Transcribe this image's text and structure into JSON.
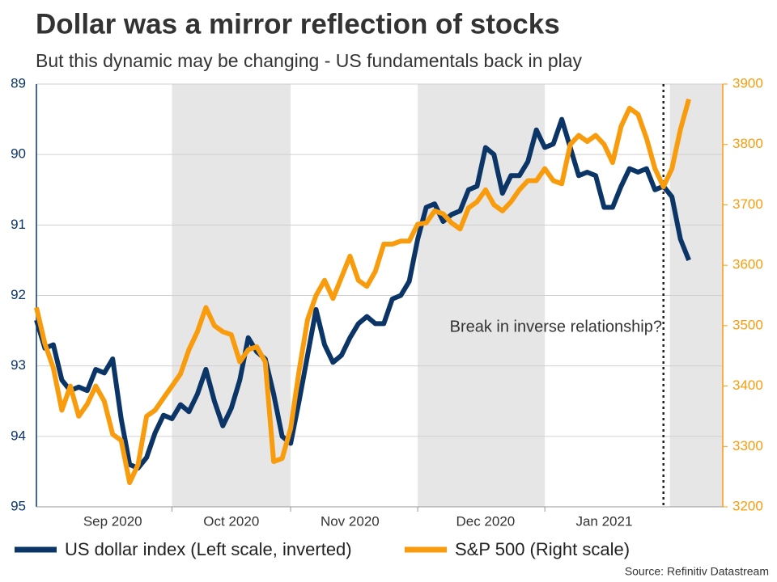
{
  "chart_data": {
    "type": "line",
    "title": "Dollar was a mirror reflection of stocks",
    "subtitle": "But this dynamic may be changing - US fundamentals back in play",
    "annotation": "Break in inverse relationship?",
    "source": "Source: Refinitiv Datastream",
    "categories": [
      null,
      null,
      null,
      null,
      null,
      null,
      null,
      null,
      null,
      "Sep 2020",
      null,
      null,
      null,
      null,
      null,
      null,
      null,
      null,
      null,
      null,
      null,
      null,
      null,
      "Oct 2020",
      null,
      null,
      null,
      null,
      null,
      null,
      null,
      null,
      null,
      null,
      null,
      null,
      null,
      "Nov 2020",
      null,
      null,
      null,
      null,
      null,
      null,
      null,
      null,
      null,
      null,
      null,
      null,
      null,
      null,
      null,
      "Dec 2020",
      null,
      null,
      null,
      null,
      null,
      null,
      null,
      null,
      null,
      null,
      null,
      null,
      null,
      "Jan 2021",
      null,
      null,
      null,
      null,
      null,
      null,
      null,
      null,
      null,
      null,
      null,
      null,
      null,
      null
    ],
    "series": [
      {
        "name": "US dollar index (Left scale, inverted)",
        "color": "#0b3566",
        "axis": "y",
        "values": [
          92.35,
          92.75,
          92.7,
          93.2,
          93.35,
          93.3,
          93.35,
          93.05,
          93.1,
          92.9,
          93.75,
          94.4,
          94.45,
          94.3,
          93.95,
          93.7,
          93.75,
          93.55,
          93.65,
          93.4,
          93.05,
          93.5,
          93.85,
          93.6,
          93.2,
          92.6,
          92.8,
          92.9,
          93.4,
          94.0,
          94.1,
          93.5,
          92.85,
          92.2,
          92.7,
          92.95,
          92.85,
          92.6,
          92.4,
          92.3,
          92.4,
          92.4,
          92.05,
          92.0,
          91.8,
          91.2,
          90.75,
          90.7,
          90.95,
          90.85,
          90.8,
          90.5,
          90.45,
          89.9,
          90.0,
          90.55,
          90.3,
          90.3,
          90.1,
          89.65,
          89.9,
          89.85,
          89.5,
          89.9,
          90.3,
          90.25,
          90.3,
          90.75,
          90.75,
          90.45,
          90.2,
          90.25,
          90.2,
          90.5,
          90.45,
          90.6,
          91.2,
          91.5,
          null,
          null,
          null,
          null
        ]
      },
      {
        "name": "S&P 500 (Right scale)",
        "color": "#f89c0e",
        "axis": "y2",
        "values": [
          3530,
          3470,
          3430,
          3360,
          3400,
          3350,
          3370,
          3400,
          3375,
          3320,
          3310,
          3240,
          3270,
          3350,
          3360,
          3380,
          3400,
          3420,
          3460,
          3490,
          3530,
          3500,
          3490,
          3485,
          3440,
          3460,
          3465,
          3440,
          3275,
          3280,
          3330,
          3425,
          3510,
          3550,
          3575,
          3545,
          3580,
          3615,
          3575,
          3565,
          3590,
          3635,
          3635,
          3640,
          3640,
          3668,
          3670,
          3690,
          3685,
          3670,
          3660,
          3695,
          3705,
          3725,
          3700,
          3690,
          3705,
          3725,
          3740,
          3740,
          3760,
          3740,
          3735,
          3800,
          3815,
          3805,
          3815,
          3800,
          3770,
          3830,
          3860,
          3850,
          3810,
          3760,
          3730,
          3760,
          3825,
          3875,
          null,
          null,
          null,
          null
        ]
      }
    ],
    "ylim": [
      95,
      89
    ],
    "yticks": [
      89,
      90,
      91,
      92,
      93,
      94,
      95
    ],
    "y_inverted": true,
    "y2lim": [
      3200,
      3900
    ],
    "y2ticks": [
      3200,
      3300,
      3400,
      3500,
      3600,
      3700,
      3800,
      3900
    ],
    "grid": true
  }
}
